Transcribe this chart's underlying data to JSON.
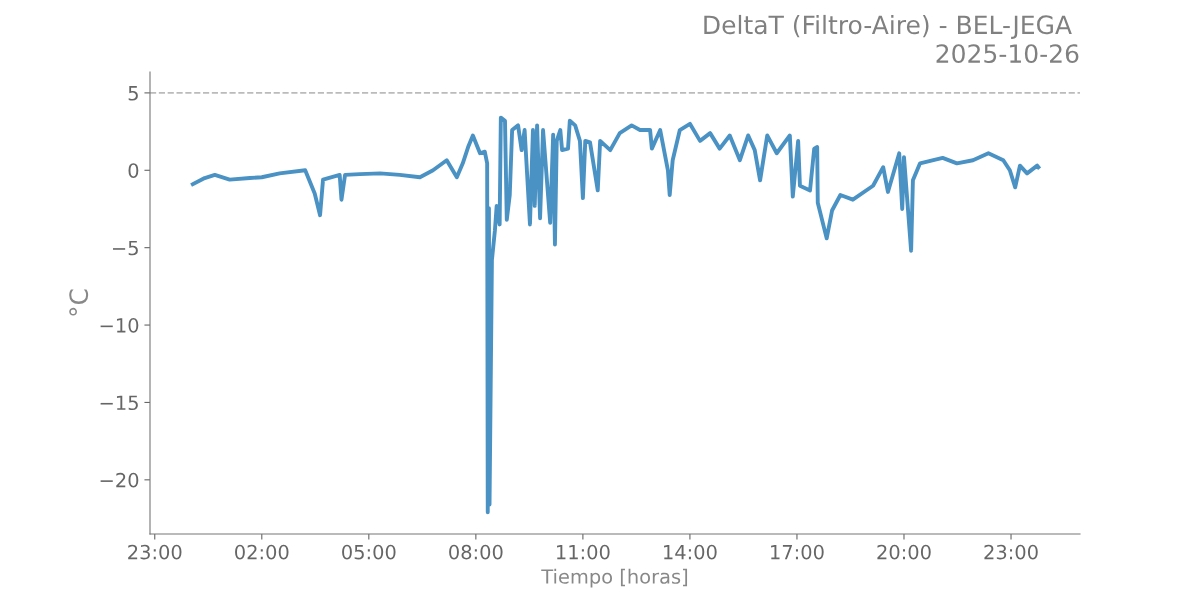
{
  "chart_data": {
    "type": "line",
    "title": "DeltaT (Filtro-Aire) - BEL-JEGA ",
    "subtitle": "2025-10-26",
    "xlabel": "Tiempo [horas]",
    "ylabel": "°C",
    "x": [
      "2025-10-26T00:04",
      "2025-10-26T00:24",
      "2025-10-26T00:41",
      "2025-10-26T01:06",
      "2025-10-26T01:40",
      "2025-10-26T02:00",
      "2025-10-26T02:30",
      "2025-10-26T03:13",
      "2025-10-26T03:29",
      "2025-10-26T03:38",
      "2025-10-26T03:43",
      "2025-10-26T04:11",
      "2025-10-26T04:14",
      "2025-10-26T04:20",
      "2025-10-26T04:45",
      "2025-10-26T05:19",
      "2025-10-26T05:52",
      "2025-10-26T06:26",
      "2025-10-26T06:48",
      "2025-10-26T07:11",
      "2025-10-26T07:28",
      "2025-10-26T07:38",
      "2025-10-26T07:47",
      "2025-10-26T07:55",
      "2025-10-26T08:07",
      "2025-10-26T08:15",
      "2025-10-26T08:19",
      "2025-10-26T08:20",
      "2025-10-26T08:22",
      "2025-10-26T08:23",
      "2025-10-26T08:27",
      "2025-10-26T08:32",
      "2025-10-26T08:35",
      "2025-10-26T08:40",
      "2025-10-26T08:42",
      "2025-10-26T08:49",
      "2025-10-26T08:52",
      "2025-10-26T08:57",
      "2025-10-26T09:01",
      "2025-10-26T09:11",
      "2025-10-26T09:17",
      "2025-10-26T09:22",
      "2025-10-26T09:31",
      "2025-10-26T09:36",
      "2025-10-26T09:39",
      "2025-10-26T09:43",
      "2025-10-26T09:48",
      "2025-10-26T09:53",
      "2025-10-26T10:05",
      "2025-10-26T10:10",
      "2025-10-26T10:13",
      "2025-10-26T10:16",
      "2025-10-26T10:22",
      "2025-10-26T10:25",
      "2025-10-26T10:35",
      "2025-10-26T10:38",
      "2025-10-26T10:47",
      "2025-10-26T10:55",
      "2025-10-26T11:00",
      "2025-10-26T11:04",
      "2025-10-26T11:12",
      "2025-10-26T11:25",
      "2025-10-26T11:29",
      "2025-10-26T11:46",
      "2025-10-26T12:02",
      "2025-10-26T12:22",
      "2025-10-26T12:36",
      "2025-10-26T12:53",
      "2025-10-26T12:56",
      "2025-10-26T13:10",
      "2025-10-26T13:23",
      "2025-10-26T13:26",
      "2025-10-26T13:31",
      "2025-10-26T13:43",
      "2025-10-26T14:00",
      "2025-10-26T14:17",
      "2025-10-26T14:34",
      "2025-10-26T14:50",
      "2025-10-26T15:07",
      "2025-10-26T15:24",
      "2025-10-26T15:38",
      "2025-10-26T15:49",
      "2025-10-26T15:58",
      "2025-10-26T16:10",
      "2025-10-26T16:26",
      "2025-10-26T16:48",
      "2025-10-26T16:53",
      "2025-10-26T17:02",
      "2025-10-26T17:05",
      "2025-10-26T17:22",
      "2025-10-26T17:29",
      "2025-10-26T17:34",
      "2025-10-26T17:35",
      "2025-10-26T17:50",
      "2025-10-26T17:59",
      "2025-10-26T18:13",
      "2025-10-26T18:34",
      "2025-10-26T19:08",
      "2025-10-26T19:25",
      "2025-10-26T19:33",
      "2025-10-26T19:52",
      "2025-10-26T19:57",
      "2025-10-26T20:00",
      "2025-10-26T20:12",
      "2025-10-26T20:15",
      "2025-10-26T20:27",
      "2025-10-26T21:05",
      "2025-10-26T21:29",
      "2025-10-26T21:56",
      "2025-10-26T22:22",
      "2025-10-26T22:47",
      "2025-10-26T22:58",
      "2025-10-26T23:07",
      "2025-10-26T23:15",
      "2025-10-26T23:27",
      "2025-10-26T23:44",
      "2025-10-26T23:46"
    ],
    "series": [
      {
        "color": "#4a92c4",
        "values": [
          -0.9,
          -0.5,
          -0.3,
          -0.6,
          -0.5,
          -0.45,
          -0.2,
          0.0,
          -1.5,
          -2.9,
          -0.6,
          -0.3,
          -1.9,
          -0.3,
          -0.25,
          -0.2,
          -0.3,
          -0.45,
          0.0,
          0.65,
          -0.45,
          0.45,
          1.5,
          2.25,
          1.1,
          1.2,
          0.45,
          -22.1,
          -2.45,
          -21.6,
          -5.8,
          -3.9,
          -2.3,
          -3.5,
          3.4,
          3.2,
          -3.2,
          -1.6,
          2.6,
          2.9,
          1.3,
          2.6,
          -3.5,
          2.6,
          -2.3,
          2.9,
          -3.1,
          2.6,
          -3.4,
          2.3,
          -4.8,
          1.9,
          2.6,
          1.3,
          1.4,
          3.2,
          2.9,
          1.9,
          -1.8,
          1.9,
          1.8,
          -1.3,
          1.9,
          1.3,
          2.4,
          2.9,
          2.6,
          2.6,
          1.4,
          2.6,
          0.0,
          -1.6,
          0.65,
          2.6,
          3.0,
          1.9,
          2.4,
          1.4,
          2.25,
          0.65,
          2.25,
          1.3,
          -0.65,
          2.25,
          1.1,
          2.25,
          -1.7,
          1.9,
          -1.0,
          -1.3,
          1.4,
          1.5,
          -2.1,
          -4.4,
          -2.6,
          -1.6,
          -1.9,
          -1.0,
          0.2,
          -1.4,
          1.1,
          -2.5,
          0.85,
          -5.2,
          -0.65,
          0.45,
          0.8,
          0.45,
          0.65,
          1.1,
          0.65,
          0.0,
          -1.1,
          0.3,
          -0.2,
          0.3,
          0.2
        ]
      }
    ],
    "xlim": [
      "2025-10-25T22:52",
      "2025-10-27T00:56"
    ],
    "xticks": [
      {
        "value": "2025-10-25T23:00",
        "label": "23:00"
      },
      {
        "value": "2025-10-26T02:00",
        "label": "02:00"
      },
      {
        "value": "2025-10-26T05:00",
        "label": "05:00"
      },
      {
        "value": "2025-10-26T08:00",
        "label": "08:00"
      },
      {
        "value": "2025-10-26T11:00",
        "label": "11:00"
      },
      {
        "value": "2025-10-26T14:00",
        "label": "14:00"
      },
      {
        "value": "2025-10-26T17:00",
        "label": "17:00"
      },
      {
        "value": "2025-10-26T20:00",
        "label": "20:00"
      },
      {
        "value": "2025-10-26T23:00",
        "label": "23:00"
      }
    ],
    "ylim": [
      -23.5,
      6.35
    ],
    "yticks": [
      {
        "value": -20,
        "label": "−20"
      },
      {
        "value": -15,
        "label": "−15"
      },
      {
        "value": -10,
        "label": "−10"
      },
      {
        "value": -5,
        "label": "−5"
      },
      0,
      5
    ],
    "ref_lines": [
      {
        "axis": "y",
        "value": 5,
        "color": "#bbbbbb",
        "line_style": "dashed"
      }
    ],
    "grid": false,
    "legend": false,
    "marker": "none",
    "line_style": "solid"
  }
}
